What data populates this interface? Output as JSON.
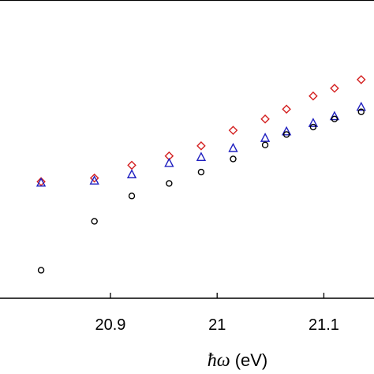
{
  "chart_data": {
    "type": "scatter",
    "xlabel": "ħω (eV)",
    "xlabel_parts": {
      "symbol": "ħω",
      "unit": "(eV)"
    },
    "ylabel": "",
    "xlim": [
      20.7965,
      21.147
    ],
    "ylim": [
      0,
      1.0
    ],
    "x_ticks": [
      20.9,
      21,
      21.1
    ],
    "x_tick_labels": [
      "20.9",
      "21",
      "21.1"
    ],
    "grid": false,
    "legend": "none",
    "series": [
      {
        "marker": "diamond",
        "color": "#d42020",
        "x": [
          20.835,
          20.885,
          20.92,
          20.955,
          20.985,
          21.015,
          21.045,
          21.065,
          21.09,
          21.11,
          21.135
        ],
        "y": [
          0.391,
          0.403,
          0.446,
          0.477,
          0.511,
          0.563,
          0.601,
          0.634,
          0.678,
          0.704,
          0.733
        ]
      },
      {
        "marker": "triangle",
        "color": "#2020c0",
        "x": [
          20.835,
          20.885,
          20.92,
          20.955,
          20.985,
          21.015,
          21.045,
          21.065,
          21.09,
          21.11,
          21.135
        ],
        "y": [
          0.388,
          0.395,
          0.416,
          0.454,
          0.474,
          0.504,
          0.538,
          0.56,
          0.588,
          0.611,
          0.642
        ]
      },
      {
        "marker": "circle",
        "color": "#000000",
        "x": [
          20.835,
          20.885,
          20.92,
          20.955,
          20.985,
          21.015,
          21.045,
          21.065,
          21.09,
          21.11,
          21.135
        ],
        "y": [
          0.094,
          0.258,
          0.343,
          0.385,
          0.423,
          0.467,
          0.514,
          0.549,
          0.574,
          0.601,
          0.625
        ]
      }
    ]
  }
}
